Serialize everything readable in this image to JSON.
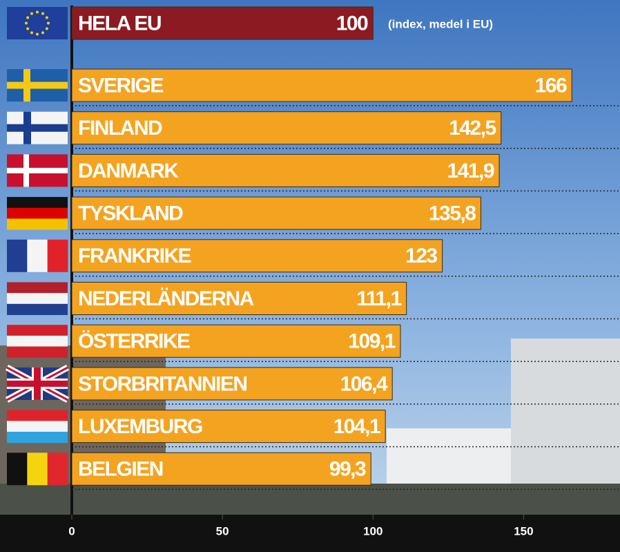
{
  "chart_data": {
    "type": "barh",
    "annotation": "(index, medel i EU)",
    "categories": [
      "HELA EU",
      "SVERIGE",
      "FINLAND",
      "DANMARK",
      "TYSKLAND",
      "FRANKRIKE",
      "NEDERLÄNDERNA",
      "ÖSTERRIKE",
      "STORBRITANNIEN",
      "LUXEMBURG",
      "BELGIEN"
    ],
    "values": [
      100,
      166,
      142.5,
      141.9,
      135.8,
      123,
      111.1,
      109.1,
      106.4,
      104.1,
      99.3
    ],
    "value_labels": [
      "100",
      "166",
      "142,5",
      "141,9",
      "135,8",
      "123",
      "111,1",
      "109,1",
      "106,4",
      "104,1",
      "99,3"
    ],
    "colors": [
      "#8c1a22",
      "#f4a320",
      "#f4a320",
      "#f4a320",
      "#f4a320",
      "#f4a320",
      "#f4a320",
      "#f4a320",
      "#f4a320",
      "#f4a320",
      "#f4a320"
    ],
    "xlim": [
      0,
      182
    ],
    "xticks": [
      0,
      50,
      100,
      150
    ]
  }
}
